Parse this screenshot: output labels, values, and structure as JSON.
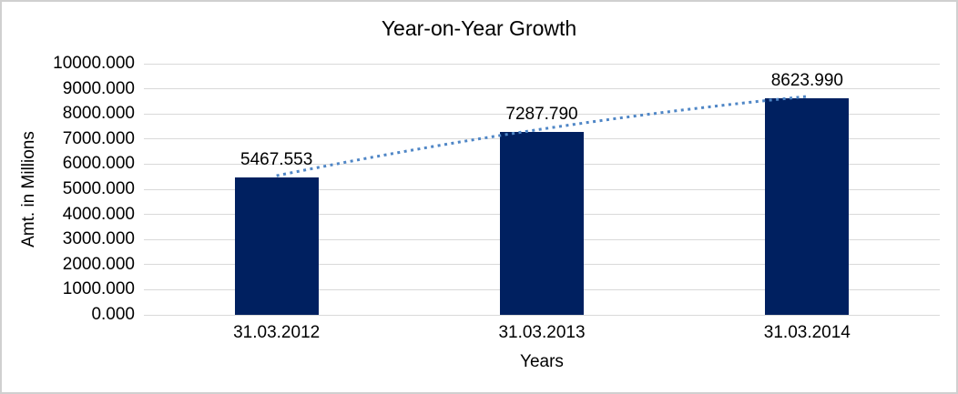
{
  "chart_data": {
    "type": "bar",
    "title": "Year-on-Year Growth",
    "xlabel": "Years",
    "ylabel": "Amt. in Millions",
    "categories": [
      "31.03.2012",
      "31.03.2013",
      "31.03.2014"
    ],
    "values": [
      5467.553,
      7287.79,
      8623.99
    ],
    "data_labels": [
      "5467.553",
      "7287.790",
      "8623.990"
    ],
    "ylim": [
      0,
      10000
    ],
    "ytick_step": 1000,
    "ytick_labels": [
      "0.000",
      "1000.000",
      "2000.000",
      "3000.000",
      "4000.000",
      "5000.000",
      "6000.000",
      "7000.000",
      "8000.000",
      "9000.000",
      "10000.000"
    ],
    "grid": true,
    "legend": "none",
    "trendline": {
      "style": "dotted",
      "color": "#4f86c6",
      "spans": "bar1-center to bar3-center, slightly curved"
    },
    "colors": {
      "bar": "#002060",
      "trendline": "#4f86c6",
      "gridline": "#d9d9d9",
      "text": "#000000",
      "background": "#ffffff",
      "border": "#d0d0d0"
    }
  }
}
